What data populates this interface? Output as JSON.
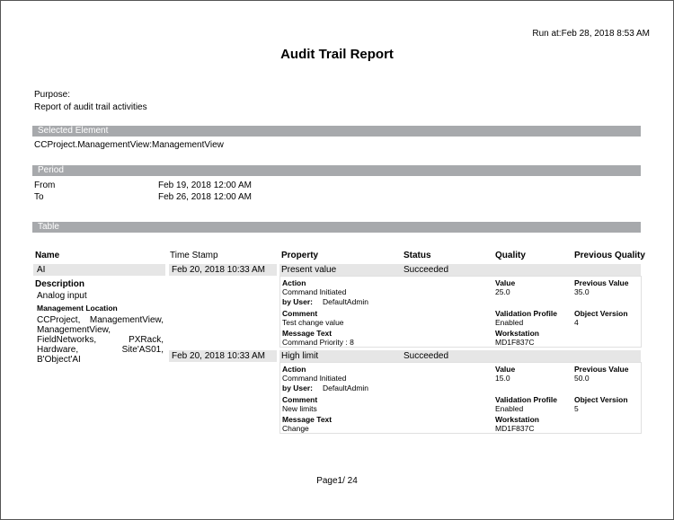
{
  "header": {
    "run_at": "Run at:Feb 28, 2018 8:53 AM",
    "title": "Audit Trail Report"
  },
  "purpose": {
    "label": "Purpose:",
    "text": "Report of audit trail activities"
  },
  "selected_element": {
    "heading": "Selected Element",
    "value": "CCProject.ManagementView:ManagementView"
  },
  "period": {
    "heading": "Period",
    "rows": [
      [
        "From",
        "Feb 19, 2018 12:00 AM"
      ],
      [
        "To",
        "Feb 26, 2018 12:00 AM"
      ]
    ]
  },
  "table": {
    "heading": "Table",
    "columns": [
      "Name",
      "Time Stamp",
      "Property",
      "Status",
      "Quality",
      "Previous Quality"
    ],
    "name": "AI",
    "description_label": "Description",
    "description": "Analog input",
    "location_label": "Management Location",
    "location": "CCProject, ManagementView, ManagementView, FieldNetworks, PXRack, Hardware, Site'AS01, B'Object'AI",
    "records": [
      {
        "time_stamp": "Feb 20, 2018 10:33 AM",
        "property": "Present value",
        "status": "Succeeded",
        "action_label": "Action",
        "action": "Command Initiated",
        "by_user_label": "by User:",
        "by_user": "DefaultAdmin",
        "value_label": "Value",
        "value": "25.0",
        "previous_value_label": "Previous Value",
        "previous_value": "35.0",
        "comment_label": "Comment",
        "comment": "Test change value",
        "validation_profile_label": "Validation Profile",
        "validation_profile": "Enabled",
        "object_version_label": "Object Version",
        "object_version": "4",
        "message_text_label": "Message Text",
        "message_text": "Command  Priority : 8",
        "workstation_label": "Workstation",
        "workstation": "MD1F837C"
      },
      {
        "time_stamp": "Feb 20, 2018 10:33 AM",
        "property": "High limit",
        "status": "Succeeded",
        "action_label": "Action",
        "action": "Command Initiated",
        "by_user_label": "by User:",
        "by_user": "DefaultAdmin",
        "value_label": "Value",
        "value": "15.0",
        "previous_value_label": "Previous Value",
        "previous_value": "50.0",
        "comment_label": "Comment",
        "comment": "New limits",
        "validation_profile_label": "Validation Profile",
        "validation_profile": "Enabled",
        "object_version_label": "Object Version",
        "object_version": "5",
        "message_text_label": "Message Text",
        "message_text": "Change",
        "workstation_label": "Workstation",
        "workstation": "MD1F837C"
      }
    ]
  },
  "footer": {
    "page": "Page1/ 24"
  }
}
